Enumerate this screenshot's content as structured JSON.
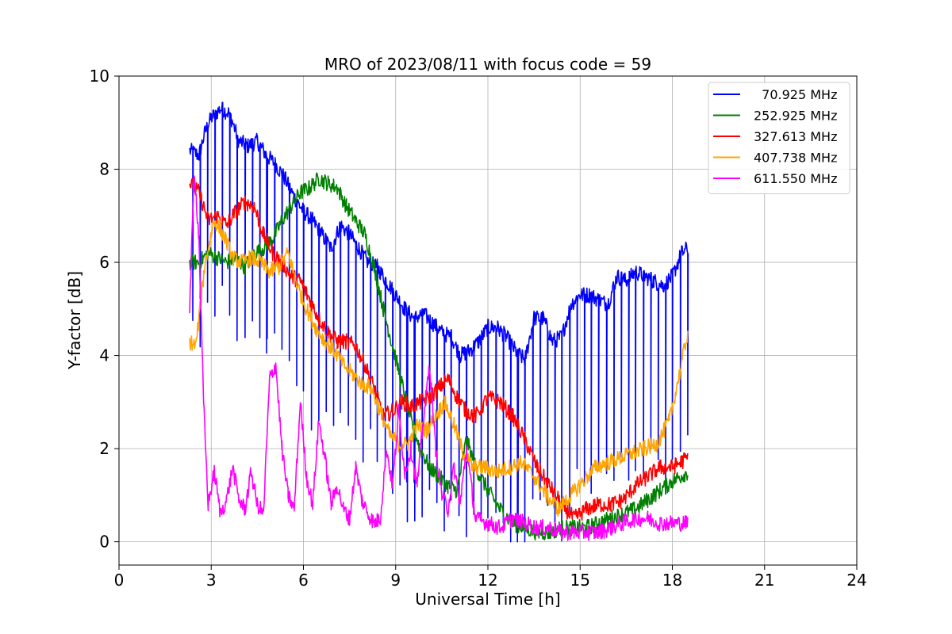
{
  "chart_data": {
    "type": "line",
    "title": "MRO of 2023/08/11 with focus code = 59",
    "xlabel": "Universal Time [h]",
    "ylabel": "Y-factor [dB]",
    "xlim": [
      0,
      24
    ],
    "ylim": [
      -0.5,
      10
    ],
    "xticks": [
      0,
      3,
      6,
      9,
      12,
      15,
      18,
      21,
      24
    ],
    "yticks": [
      0,
      2,
      4,
      6,
      8,
      10
    ],
    "grid": true,
    "legend_position": "top-right",
    "series": [
      {
        "name": "  70.925 MHz",
        "color": "#0000ff",
        "dips": true,
        "x": [
          2.3,
          2.6,
          2.8,
          3.0,
          3.3,
          3.6,
          3.9,
          4.2,
          4.5,
          4.8,
          5.1,
          5.4,
          5.7,
          6.0,
          6.3,
          6.6,
          6.9,
          7.2,
          7.5,
          7.8,
          8.1,
          8.4,
          8.7,
          9.0,
          9.3,
          9.6,
          9.9,
          10.2,
          10.5,
          10.8,
          11.1,
          11.4,
          11.7,
          12.0,
          12.3,
          12.6,
          12.9,
          13.2,
          13.5,
          13.8,
          14.1,
          14.4,
          14.7,
          15.0,
          15.3,
          15.6,
          15.9,
          16.2,
          16.5,
          16.8,
          17.1,
          17.4,
          17.7,
          18.0,
          18.3,
          18.5
        ],
        "y": [
          8.4,
          8.3,
          8.8,
          9.1,
          9.3,
          9.2,
          8.6,
          8.5,
          8.6,
          8.3,
          8.1,
          7.8,
          7.4,
          7.1,
          6.9,
          6.6,
          6.3,
          6.8,
          6.6,
          6.3,
          6.0,
          5.9,
          5.6,
          5.3,
          5.0,
          4.8,
          4.9,
          4.7,
          4.5,
          4.4,
          4.0,
          4.1,
          4.3,
          4.6,
          4.6,
          4.4,
          4.1,
          3.9,
          4.8,
          4.8,
          4.3,
          4.4,
          5.1,
          5.3,
          5.3,
          5.2,
          5.1,
          5.7,
          5.6,
          5.8,
          5.7,
          5.6,
          5.5,
          5.7,
          6.2,
          6.3
        ]
      },
      {
        "name": "252.925 MHz",
        "color": "#008000",
        "x": [
          2.3,
          2.6,
          2.9,
          3.2,
          3.5,
          3.8,
          4.1,
          4.4,
          4.7,
          5.0,
          5.3,
          5.6,
          5.9,
          6.2,
          6.5,
          6.8,
          7.1,
          7.4,
          7.7,
          8.0,
          8.3,
          8.6,
          8.9,
          9.2,
          9.5,
          9.8,
          10.1,
          10.4,
          10.7,
          11.0,
          11.3,
          11.6,
          12.0,
          12.4,
          12.8,
          13.2,
          13.6,
          14.0,
          14.4,
          14.8,
          15.2,
          15.6,
          16.0,
          16.4,
          16.8,
          17.2,
          17.6,
          18.0,
          18.5
        ],
        "y": [
          6.0,
          6.0,
          6.2,
          6.1,
          6.0,
          6.1,
          5.9,
          6.2,
          6.3,
          6.5,
          6.9,
          7.2,
          7.5,
          7.6,
          7.8,
          7.7,
          7.6,
          7.2,
          6.9,
          6.6,
          5.9,
          5.0,
          4.2,
          3.4,
          2.6,
          2.0,
          1.6,
          1.4,
          1.2,
          1.1,
          2.2,
          1.6,
          1.1,
          0.7,
          0.4,
          0.3,
          0.2,
          0.2,
          0.3,
          0.3,
          0.3,
          0.4,
          0.5,
          0.6,
          0.7,
          0.9,
          1.1,
          1.3,
          1.5
        ]
      },
      {
        "name": "327.613 MHz",
        "color": "#ff0000",
        "x": [
          2.3,
          2.6,
          2.9,
          3.2,
          3.5,
          3.8,
          4.1,
          4.4,
          4.7,
          5.0,
          5.3,
          5.6,
          5.9,
          6.2,
          6.5,
          6.8,
          7.1,
          7.4,
          7.7,
          8.0,
          8.3,
          8.6,
          8.9,
          9.2,
          9.5,
          9.8,
          10.1,
          10.4,
          10.7,
          11.0,
          11.3,
          11.6,
          12.0,
          12.4,
          12.8,
          13.2,
          13.6,
          14.0,
          14.4,
          14.8,
          15.2,
          15.6,
          16.0,
          16.4,
          16.8,
          17.2,
          17.6,
          18.0,
          18.5
        ],
        "y": [
          7.7,
          7.5,
          6.9,
          7.0,
          6.8,
          7.1,
          7.3,
          7.2,
          6.6,
          6.2,
          6.0,
          5.7,
          5.6,
          5.2,
          4.8,
          4.5,
          4.3,
          4.3,
          4.2,
          3.8,
          3.3,
          2.7,
          2.8,
          3.0,
          2.9,
          3.0,
          3.1,
          3.3,
          3.5,
          3.1,
          2.8,
          2.7,
          3.1,
          3.0,
          2.7,
          2.2,
          1.6,
          1.2,
          0.8,
          0.5,
          0.7,
          0.8,
          0.8,
          0.9,
          1.2,
          1.4,
          1.6,
          1.6,
          1.8
        ]
      },
      {
        "name": "407.738 MHz",
        "color": "#ffa500",
        "x": [
          2.3,
          2.5,
          2.8,
          3.1,
          3.4,
          3.7,
          4.0,
          4.3,
          4.6,
          4.9,
          5.2,
          5.5,
          5.8,
          6.1,
          6.4,
          6.7,
          7.0,
          7.3,
          7.6,
          7.9,
          8.2,
          8.5,
          8.8,
          9.1,
          9.4,
          9.7,
          10.0,
          10.3,
          10.6,
          10.9,
          11.2,
          11.5,
          11.9,
          12.3,
          12.7,
          13.1,
          13.5,
          13.9,
          14.3,
          14.7,
          15.1,
          15.5,
          15.9,
          16.3,
          16.7,
          17.1,
          17.5,
          17.9,
          18.2,
          18.5
        ],
        "y": [
          4.3,
          4.2,
          6.0,
          6.9,
          6.6,
          6.1,
          6.0,
          6.1,
          6.0,
          5.8,
          5.9,
          6.2,
          5.5,
          5.0,
          4.6,
          4.3,
          4.1,
          3.8,
          3.6,
          3.4,
          3.3,
          2.8,
          2.3,
          2.1,
          2.1,
          2.5,
          2.4,
          2.7,
          3.0,
          2.5,
          1.9,
          1.6,
          1.6,
          1.5,
          1.6,
          1.7,
          1.4,
          1.0,
          0.7,
          1.0,
          1.3,
          1.6,
          1.7,
          1.8,
          1.9,
          2.0,
          2.1,
          2.6,
          3.5,
          4.5
        ]
      },
      {
        "name": "611.550 MHz",
        "color": "#ff00ff",
        "x": [
          2.3,
          2.45,
          2.6,
          2.75,
          2.9,
          3.1,
          3.3,
          3.5,
          3.7,
          3.9,
          4.1,
          4.3,
          4.5,
          4.7,
          4.9,
          5.1,
          5.3,
          5.5,
          5.7,
          5.9,
          6.1,
          6.3,
          6.5,
          6.7,
          6.9,
          7.1,
          7.3,
          7.5,
          7.7,
          7.9,
          8.1,
          8.3,
          8.5,
          8.7,
          8.9,
          9.1,
          9.3,
          9.5,
          9.7,
          9.9,
          10.1,
          10.3,
          10.5,
          10.7,
          10.9,
          11.1,
          11.3,
          11.6,
          12.0,
          12.4,
          12.8,
          13.2,
          13.6,
          14.0,
          14.4,
          14.8,
          15.2,
          15.6,
          16.0,
          16.4,
          16.8,
          17.2,
          17.6,
          18.0,
          18.5
        ],
        "y": [
          5.0,
          8.0,
          6.5,
          3.0,
          0.8,
          1.5,
          0.6,
          0.9,
          1.6,
          0.9,
          0.7,
          1.5,
          0.8,
          0.6,
          3.5,
          3.8,
          2.0,
          1.0,
          0.7,
          3.0,
          1.4,
          0.8,
          2.6,
          1.8,
          0.8,
          1.2,
          0.7,
          0.5,
          1.6,
          0.9,
          0.6,
          0.4,
          0.5,
          2.0,
          1.2,
          2.8,
          1.5,
          2.0,
          1.2,
          2.6,
          3.8,
          2.0,
          1.0,
          0.7,
          1.6,
          0.8,
          2.0,
          0.5,
          0.4,
          0.3,
          0.5,
          0.4,
          0.3,
          0.3,
          0.2,
          0.2,
          0.2,
          0.2,
          0.3,
          0.4,
          0.5,
          0.5,
          0.4,
          0.4,
          0.4
        ]
      }
    ]
  }
}
